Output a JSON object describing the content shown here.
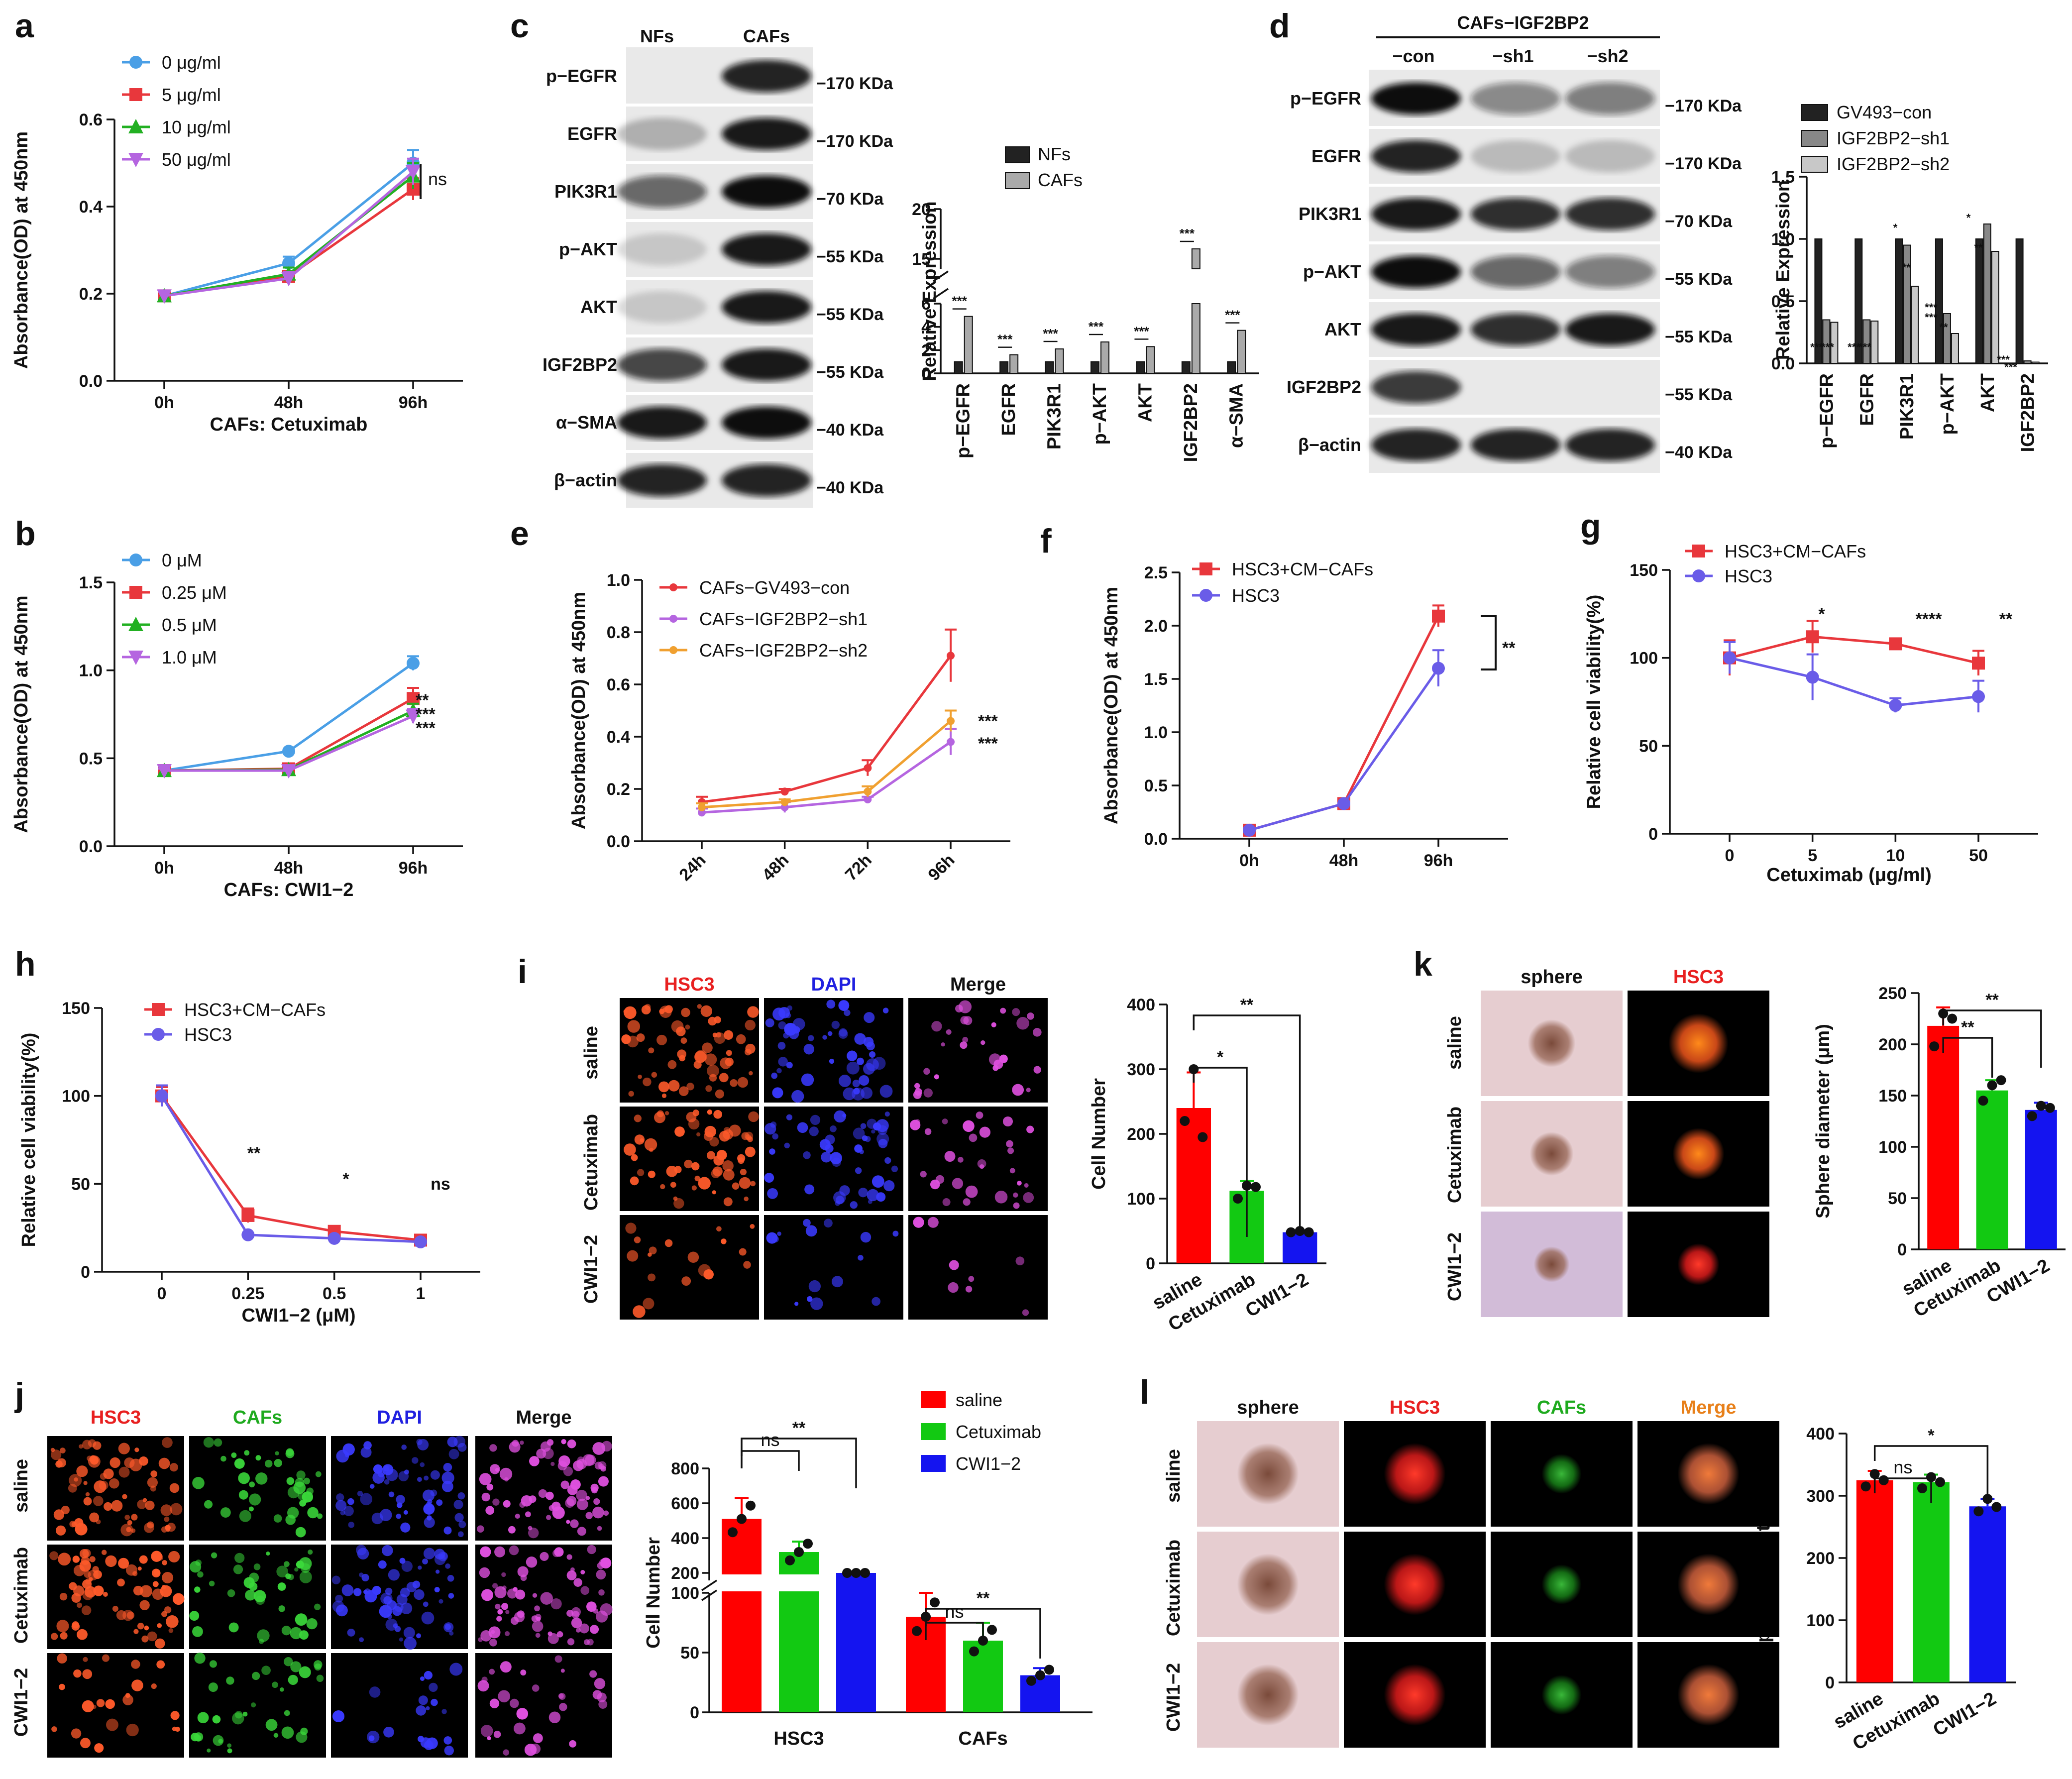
{
  "panels": {
    "a": {
      "label": "a",
      "xlabel": "CAFs: Cetuximab",
      "ylabel": "Absorbance(OD) at 450nm",
      "annotations": [
        "ns"
      ]
    },
    "b": {
      "label": "b",
      "xlabel": "CAFs: CWI1−2",
      "ylabel": "Absorbance(OD) at 450nm",
      "annotations": [
        "**",
        "***",
        "***"
      ]
    },
    "c": {
      "label": "c",
      "columns": [
        "NFs",
        "CAFs"
      ],
      "bands": [
        "p−EGFR",
        "EGFR",
        "PIK3R1",
        "p−AKT",
        "AKT",
        "IGF2BP2",
        "α−SMA",
        "β−actin"
      ],
      "markers": [
        "−170 KDa",
        "−170 KDa",
        "−70 KDa",
        "−55 KDa",
        "−55 KDa",
        "−55 KDa",
        "−40 KDa",
        "−40 KDa"
      ],
      "ylabel": "Relative  Expression"
    },
    "d": {
      "label": "d",
      "header": "CAFs−IGF2BP2",
      "columns": [
        "−con",
        "−sh1",
        "−sh2"
      ],
      "bands": [
        "p−EGFR",
        "EGFR",
        "PIK3R1",
        "p−AKT",
        "AKT",
        "IGF2BP2",
        "β−actin"
      ],
      "markers": [
        "−170 KDa",
        "−170 KDa",
        "−70 KDa",
        "−55 KDa",
        "−55 KDa",
        "−55 KDa",
        "−40 KDa"
      ],
      "ylabel": "Relative  Expression"
    },
    "e": {
      "label": "e",
      "ylabel": "Absorbance(OD) at 450nm",
      "annotations": [
        "***",
        "***"
      ]
    },
    "f": {
      "label": "f",
      "ylabel": "Absorbance(OD) at 450nm",
      "annotations": [
        "**"
      ]
    },
    "g": {
      "label": "g",
      "xlabel": "Cetuximab  (μg/ml)",
      "ylabel": "Relative cell viability(%)",
      "annotations": [
        "*",
        "****",
        "**"
      ]
    },
    "h": {
      "label": "h",
      "xlabel": "CWI1−2   (μM)",
      "ylabel": "Relative cell viability(%)",
      "annotations": [
        "**",
        "*",
        "ns"
      ]
    },
    "i": {
      "label": "i",
      "columns": [
        "HSC3",
        "DAPI",
        "Merge"
      ],
      "rows": [
        "saline",
        "Cetuximab",
        "CWI1−2"
      ],
      "ylabel": "Cell Number",
      "annotations": [
        "*",
        "**"
      ]
    },
    "j": {
      "label": "j",
      "columns": [
        "HSC3",
        "CAFs",
        "DAPI",
        "Merge"
      ],
      "rows": [
        "saline",
        "Cetuximab",
        "CWI1−2"
      ],
      "ylabel": "Cell Number",
      "annotations": [
        "ns",
        "**",
        "ns",
        "**"
      ]
    },
    "k": {
      "label": "k",
      "columns": [
        "sphere",
        "HSC3"
      ],
      "rows": [
        "saline",
        "Cetuximab",
        "CWI1−2"
      ],
      "ylabel": "Sphere diameter (μm)",
      "annotations": [
        "**",
        "**"
      ]
    },
    "l": {
      "label": "l",
      "columns": [
        "sphere",
        "HSC3",
        "CAFs",
        "Merge"
      ],
      "rows": [
        "saline",
        "Cetuximab",
        "CWI1−2"
      ],
      "ylabel": "Sphere diameter (μm)",
      "annotations": [
        "ns",
        "*"
      ]
    }
  },
  "chart_data": [
    {
      "id": "a",
      "type": "line",
      "x": [
        "0h",
        "48h",
        "96h"
      ],
      "xlabel": "CAFs: Cetuximab",
      "ylabel": "Absorbance(OD) at 450nm",
      "ylim": [
        0,
        0.6
      ],
      "yticks": [
        "0.0",
        "0.2",
        "0.4",
        "0.6"
      ],
      "series": [
        {
          "name": "0 μg/ml",
          "color": "#4a9fe6",
          "marker": "circle",
          "values": [
            0.195,
            0.27,
            0.5
          ]
        },
        {
          "name": "5 μg/ml",
          "color": "#e8373c",
          "marker": "square",
          "values": [
            0.195,
            0.24,
            0.44
          ]
        },
        {
          "name": "10 μg/ml",
          "color": "#22b022",
          "marker": "triangle",
          "values": [
            0.195,
            0.245,
            0.47
          ]
        },
        {
          "name": "50 μg/ml",
          "color": "#b565e0",
          "marker": "tridown",
          "values": [
            0.195,
            0.235,
            0.48
          ]
        }
      ]
    },
    {
      "id": "b",
      "type": "line",
      "x": [
        "0h",
        "48h",
        "96h"
      ],
      "xlabel": "CAFs: CWI1−2",
      "ylabel": "Absorbance(OD) at 450nm",
      "ylim": [
        0,
        1.5
      ],
      "yticks": [
        "0.0",
        "0.5",
        "1.0",
        "1.5"
      ],
      "series": [
        {
          "name": "0 μM",
          "color": "#4a9fe6",
          "marker": "circle",
          "values": [
            0.43,
            0.54,
            1.04
          ]
        },
        {
          "name": "0.25 μM",
          "color": "#e8373c",
          "marker": "square",
          "values": [
            0.43,
            0.44,
            0.84
          ]
        },
        {
          "name": "0.5 μM",
          "color": "#22b022",
          "marker": "triangle",
          "values": [
            0.43,
            0.435,
            0.77
          ]
        },
        {
          "name": "1.0 μM",
          "color": "#b565e0",
          "marker": "tridown",
          "values": [
            0.43,
            0.43,
            0.74
          ]
        }
      ]
    },
    {
      "id": "c",
      "type": "bar",
      "categories": [
        "p−EGFR",
        "EGFR",
        "PIK3R1",
        "p−AKT",
        "AKT",
        "IGF2BP2",
        "α−SMA"
      ],
      "ylabel": "Relative  Expression",
      "yticks": [
        "0",
        "2",
        "4",
        "6",
        "15",
        "20"
      ],
      "series": [
        {
          "name": "NFs",
          "color": "#222",
          "values": [
            1,
            1,
            1,
            1,
            1,
            1,
            1
          ]
        },
        {
          "name": "CAFs",
          "color": "#aaa",
          "values": [
            4.9,
            1.6,
            2.1,
            2.7,
            2.3,
            16,
            3.7
          ]
        }
      ],
      "annotations": [
        "***",
        "***",
        "***",
        "***",
        "***",
        "***",
        "***"
      ]
    },
    {
      "id": "d",
      "type": "bar",
      "categories": [
        "p−EGFR",
        "EGFR",
        "PIK3R1",
        "p−AKT",
        "AKT",
        "IGF2BP2"
      ],
      "ylabel": "Relative  Expression",
      "ylim": [
        0,
        1.5
      ],
      "yticks": [
        "0.0",
        "0.5",
        "1.0",
        "1.5"
      ],
      "series": [
        {
          "name": "GV493−con",
          "color": "#222",
          "values": [
            1,
            1,
            1,
            1,
            1,
            1
          ]
        },
        {
          "name": "IGF2BP2−sh1",
          "color": "#888",
          "values": [
            0.35,
            0.35,
            0.95,
            0.4,
            1.12,
            0.02
          ]
        },
        {
          "name": "IGF2BP2−sh2",
          "color": "#c8c8c8",
          "values": [
            0.33,
            0.34,
            0.62,
            0.24,
            0.9,
            0.01
          ]
        }
      ],
      "annotations": [
        "***",
        "***",
        "***",
        "***",
        "*",
        "**",
        "***",
        "**",
        "***",
        "*",
        "**",
        "***",
        "***"
      ]
    },
    {
      "id": "e",
      "type": "line",
      "x": [
        "24h",
        "48h",
        "72h",
        "96h"
      ],
      "ylabel": "Absorbance(OD) at 450nm",
      "ylim": [
        0,
        1.0
      ],
      "yticks": [
        "0.0",
        "0.2",
        "0.4",
        "0.6",
        "0.8",
        "1.0"
      ],
      "series": [
        {
          "name": "CAFs−GV493−con",
          "color": "#e8373c",
          "values": [
            0.15,
            0.19,
            0.28,
            0.71
          ]
        },
        {
          "name": "CAFs−IGF2BP2−sh1",
          "color": "#b565e0",
          "values": [
            0.11,
            0.13,
            0.16,
            0.38
          ]
        },
        {
          "name": "CAFs−IGF2BP2−sh2",
          "color": "#f0a030",
          "values": [
            0.13,
            0.15,
            0.19,
            0.46
          ]
        }
      ]
    },
    {
      "id": "f",
      "type": "line",
      "x": [
        "0h",
        "48h",
        "96h"
      ],
      "ylabel": "Absorbance(OD) at 450nm",
      "ylim": [
        0,
        2.5
      ],
      "yticks": [
        "0.0",
        "0.5",
        "1.0",
        "1.5",
        "2.0",
        "2.5"
      ],
      "series": [
        {
          "name": "HSC3+CM−CAFs",
          "color": "#e8373c",
          "marker": "square",
          "values": [
            0.08,
            0.33,
            2.09
          ]
        },
        {
          "name": "HSC3",
          "color": "#6a5ce8",
          "marker": "circle",
          "values": [
            0.08,
            0.33,
            1.6
          ]
        }
      ]
    },
    {
      "id": "g",
      "type": "line",
      "x": [
        "0",
        "5",
        "10",
        "50"
      ],
      "xlabel": "Cetuximab  (μg/ml)",
      "ylabel": "Relative cell viability(%)",
      "ylim": [
        0,
        150
      ],
      "yticks": [
        "0",
        "50",
        "100",
        "150"
      ],
      "series": [
        {
          "name": "HSC3+CM−CAFs",
          "color": "#e8373c",
          "marker": "square",
          "values": [
            100,
            112,
            108,
            97
          ]
        },
        {
          "name": "HSC3",
          "color": "#6a5ce8",
          "marker": "circle",
          "values": [
            100,
            89,
            73,
            78
          ]
        }
      ]
    },
    {
      "id": "h",
      "type": "line",
      "x": [
        "0",
        "0.25",
        "0.5",
        "1"
      ],
      "xlabel": "CWI1−2   (μM)",
      "ylabel": "Relative cell viability(%)",
      "ylim": [
        0,
        150
      ],
      "yticks": [
        "0",
        "50",
        "100",
        "150"
      ],
      "series": [
        {
          "name": "HSC3+CM−CAFs",
          "color": "#e8373c",
          "marker": "square",
          "values": [
            100,
            32,
            23,
            18
          ]
        },
        {
          "name": "HSC3",
          "color": "#6a5ce8",
          "marker": "circle",
          "values": [
            100,
            21,
            19,
            17
          ]
        }
      ]
    },
    {
      "id": "i",
      "type": "bar",
      "categories": [
        "saline",
        "Cetuximab",
        "CWI1−2"
      ],
      "ylabel": "Cell Number",
      "ylim": [
        0,
        400
      ],
      "yticks": [
        "0",
        "100",
        "200",
        "300",
        "400"
      ],
      "values": [
        240,
        112,
        48
      ],
      "colors": [
        "#ff0000",
        "#12c912",
        "#1414f0"
      ]
    },
    {
      "id": "j",
      "type": "bar",
      "categories": [
        "HSC3",
        "CAFs"
      ],
      "ylabel": "Cell Number",
      "yticks": [
        "0",
        "50",
        "100",
        "200",
        "400",
        "600",
        "800"
      ],
      "series": [
        {
          "name": "saline",
          "color": "#ff0000",
          "values": [
            510,
            80
          ]
        },
        {
          "name": "Cetuximab",
          "color": "#12c912",
          "values": [
            320,
            60
          ]
        },
        {
          "name": "CWI1−2",
          "color": "#1414f0",
          "values": [
            170,
            31
          ]
        }
      ]
    },
    {
      "id": "k",
      "type": "bar",
      "categories": [
        "saline",
        "Cetuximab",
        "CWI1−2"
      ],
      "ylabel": "Sphere diameter (μm)",
      "ylim": [
        0,
        250
      ],
      "yticks": [
        "0",
        "50",
        "100",
        "150",
        "200",
        "250"
      ],
      "values": [
        218,
        155,
        136
      ],
      "colors": [
        "#ff0000",
        "#12c912",
        "#1414f0"
      ]
    },
    {
      "id": "l",
      "type": "bar",
      "categories": [
        "saline",
        "Cetuximab",
        "CWI1−2"
      ],
      "ylabel": "Sphere diameter (μm)",
      "ylim": [
        0,
        400
      ],
      "yticks": [
        "0",
        "100",
        "200",
        "300",
        "400"
      ],
      "values": [
        325,
        322,
        283
      ],
      "colors": [
        "#ff0000",
        "#12c912",
        "#1414f0"
      ]
    }
  ]
}
